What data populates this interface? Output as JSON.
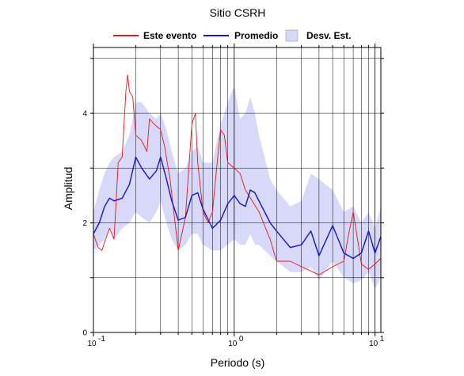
{
  "chart_data": {
    "type": "line",
    "title": "Sitio CSRH",
    "xlabel": "Periodo (s)",
    "ylabel": "Amplitud",
    "x_scale": "log",
    "xlim": [
      0.1,
      11
    ],
    "ylim": [
      0,
      5.2
    ],
    "grid": true,
    "legend_placement": "top",
    "x_tick_labels": [
      {
        "value": 0.1,
        "base": "10",
        "exp": "-1"
      },
      {
        "value": 1,
        "base": "10",
        "exp": "0"
      },
      {
        "value": 10,
        "base": "10",
        "exp": "1"
      }
    ],
    "y_ticks": [
      0,
      2,
      4
    ],
    "legend": [
      {
        "label": "Este evento",
        "kind": "line",
        "color": "#e8161c"
      },
      {
        "label": "Promedio",
        "kind": "line",
        "color": "#1414c8"
      },
      {
        "label": "Desv. Est.",
        "kind": "area",
        "color": "#d8d8f8"
      }
    ],
    "series": [
      {
        "name": "Este evento",
        "color": "#e8161c",
        "x": [
          0.1,
          0.108,
          0.115,
          0.12,
          0.13,
          0.14,
          0.15,
          0.16,
          0.17,
          0.175,
          0.18,
          0.19,
          0.2,
          0.22,
          0.24,
          0.25,
          0.27,
          0.3,
          0.32,
          0.35,
          0.4,
          0.45,
          0.5,
          0.53,
          0.55,
          0.6,
          0.65,
          0.7,
          0.75,
          0.8,
          0.85,
          0.9,
          1.0,
          1.1,
          1.2,
          1.5,
          1.8,
          2.0,
          2.5,
          3.0,
          4.0,
          5.0,
          6.0,
          6.5,
          7.0,
          8.0,
          9.0,
          10.0,
          11.0
        ],
        "values": [
          1.8,
          1.55,
          1.5,
          1.65,
          1.9,
          1.7,
          3.1,
          3.2,
          4.4,
          4.7,
          4.4,
          4.3,
          3.6,
          3.5,
          3.3,
          3.9,
          3.8,
          3.7,
          3.4,
          2.8,
          1.5,
          2.1,
          3.8,
          4.0,
          3.1,
          2.2,
          2.0,
          2.2,
          3.0,
          3.7,
          3.6,
          3.1,
          3.0,
          2.9,
          2.6,
          2.2,
          1.7,
          1.3,
          1.3,
          1.2,
          1.05,
          1.2,
          1.3,
          1.8,
          2.2,
          1.25,
          1.15,
          1.25,
          1.35
        ]
      },
      {
        "name": "Promedio",
        "color": "#1414c8",
        "x": [
          0.1,
          0.11,
          0.12,
          0.13,
          0.14,
          0.16,
          0.18,
          0.2,
          0.22,
          0.25,
          0.28,
          0.3,
          0.33,
          0.36,
          0.4,
          0.45,
          0.5,
          0.55,
          0.6,
          0.7,
          0.8,
          0.9,
          1.0,
          1.1,
          1.2,
          1.3,
          1.4,
          1.5,
          1.8,
          2.0,
          2.5,
          3.0,
          3.5,
          4.0,
          5.0,
          6.0,
          7.0,
          8.0,
          9.0,
          10.0,
          11.0
        ],
        "values": [
          1.8,
          2.0,
          2.3,
          2.45,
          2.4,
          2.45,
          2.7,
          3.2,
          3.0,
          2.8,
          2.95,
          3.2,
          2.8,
          2.4,
          2.05,
          2.1,
          2.5,
          2.55,
          2.25,
          1.9,
          2.05,
          2.35,
          2.5,
          2.35,
          2.3,
          2.6,
          2.55,
          2.4,
          2.0,
          1.85,
          1.55,
          1.6,
          1.85,
          1.4,
          1.95,
          1.45,
          1.35,
          1.45,
          1.85,
          1.45,
          1.75
        ]
      }
    ],
    "band": {
      "name": "Desv. Est.",
      "color": "#d8d8f8",
      "x": [
        0.1,
        0.11,
        0.12,
        0.13,
        0.14,
        0.16,
        0.18,
        0.2,
        0.22,
        0.25,
        0.28,
        0.3,
        0.33,
        0.36,
        0.4,
        0.45,
        0.5,
        0.55,
        0.6,
        0.7,
        0.8,
        0.9,
        1.0,
        1.1,
        1.2,
        1.3,
        1.4,
        1.5,
        1.8,
        2.0,
        2.5,
        3.0,
        3.5,
        4.0,
        5.0,
        6.0,
        7.0,
        8.0,
        9.0,
        10.0,
        11.0
      ],
      "upper": [
        2.2,
        2.6,
        2.9,
        3.1,
        3.2,
        3.3,
        3.6,
        4.2,
        4.2,
        4.0,
        3.9,
        4.0,
        3.7,
        3.3,
        2.9,
        3.0,
        3.3,
        3.4,
        3.1,
        3.1,
        3.8,
        4.2,
        4.5,
        3.9,
        4.0,
        4.3,
        4.0,
        3.6,
        2.8,
        2.6,
        2.3,
        2.4,
        2.9,
        2.8,
        2.6,
        2.2,
        2.3,
        2.0,
        2.2,
        1.9,
        2.3
      ],
      "lower": [
        1.5,
        1.6,
        1.7,
        1.9,
        1.7,
        1.9,
        2.0,
        2.2,
        2.1,
        2.0,
        2.2,
        2.4,
        2.0,
        1.7,
        1.5,
        1.6,
        1.8,
        1.8,
        1.6,
        1.5,
        1.5,
        1.6,
        1.7,
        1.6,
        1.6,
        1.8,
        1.6,
        1.6,
        1.4,
        1.3,
        1.1,
        1.1,
        1.2,
        0.95,
        1.3,
        1.0,
        0.9,
        0.95,
        1.1,
        0.8,
        1.0
      ]
    }
  }
}
